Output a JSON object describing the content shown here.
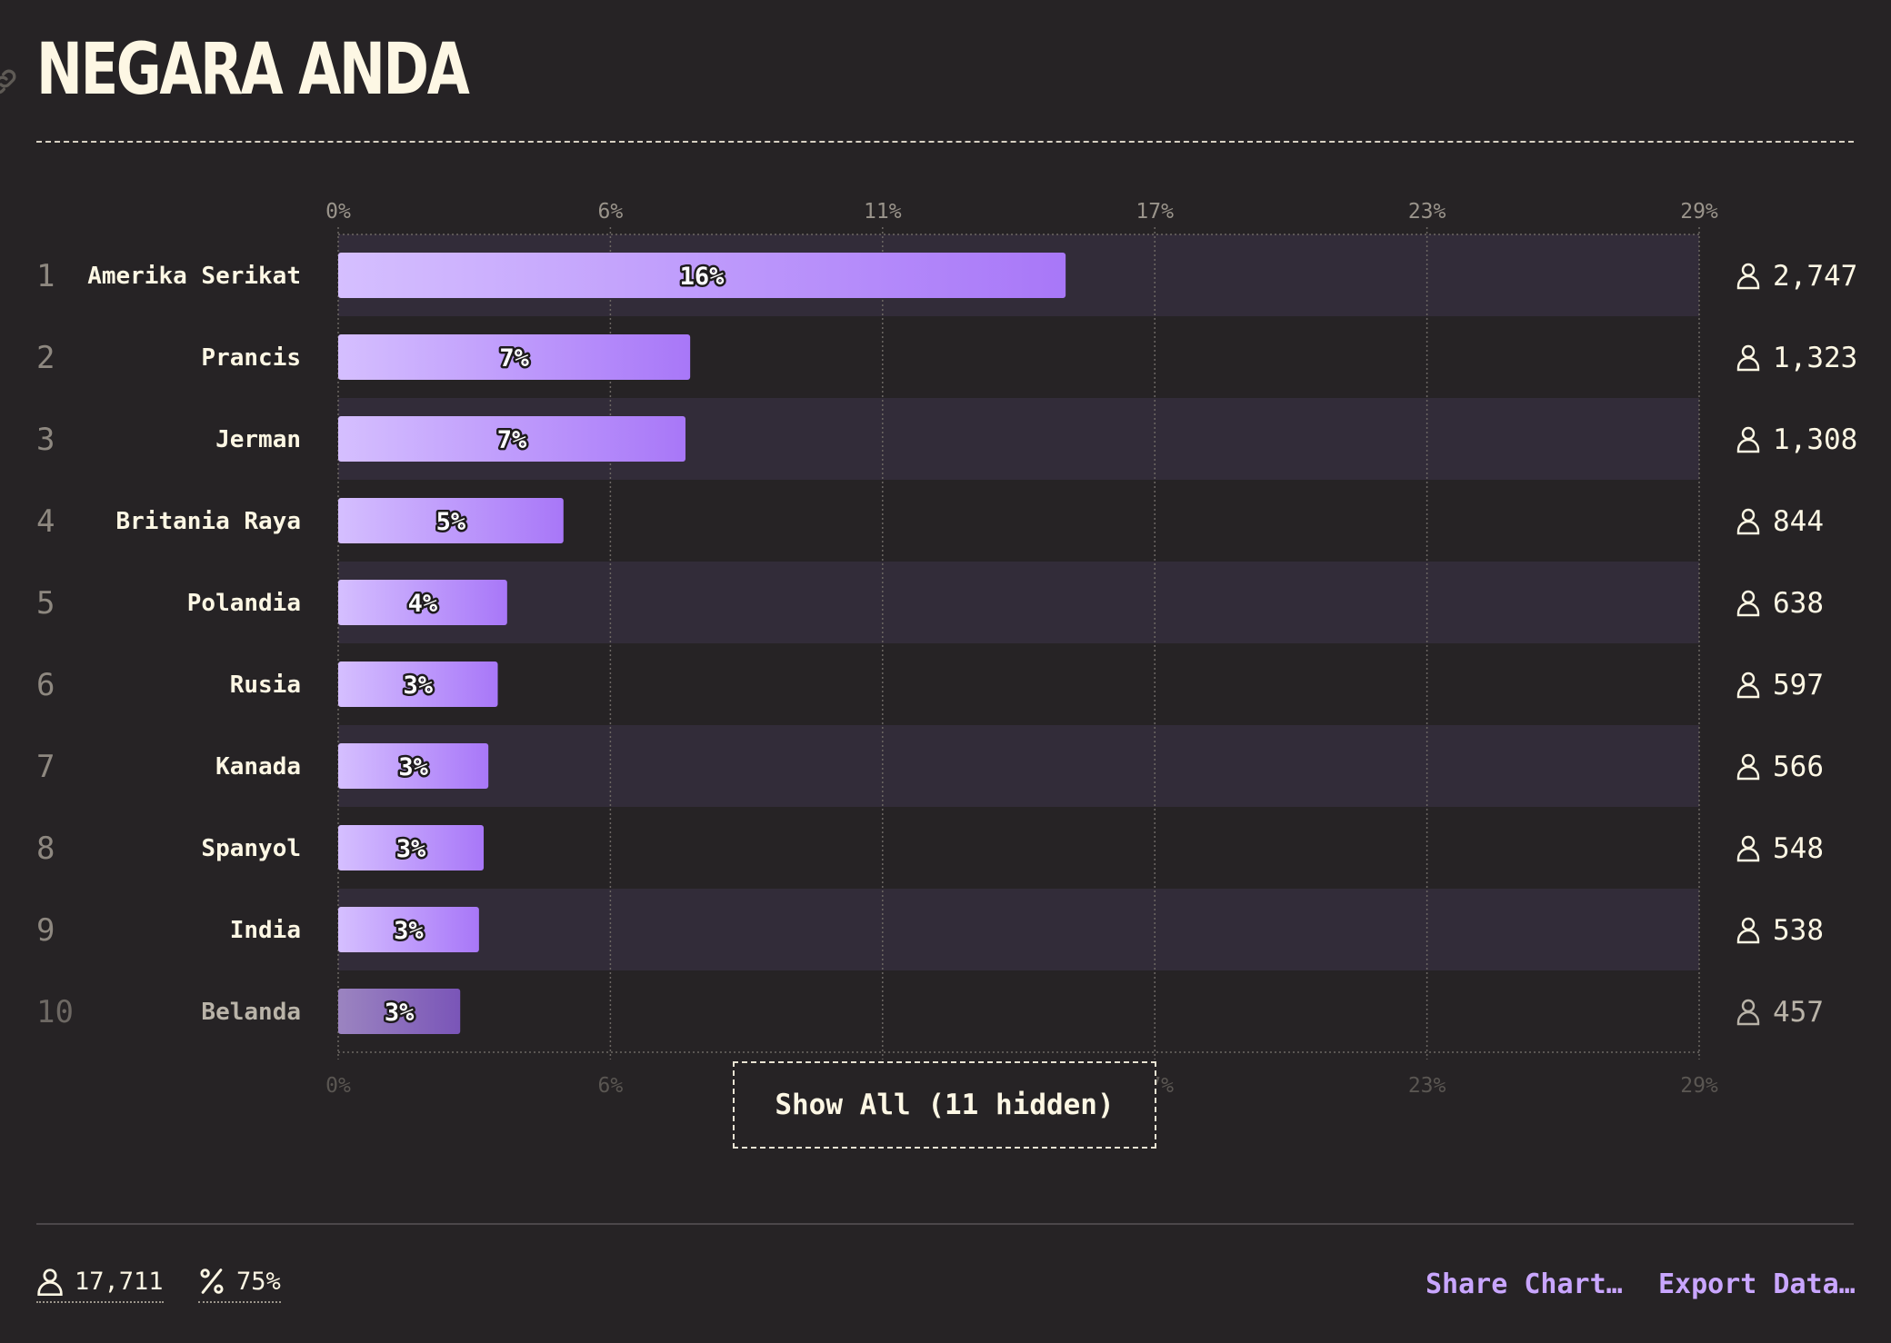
{
  "header": {
    "title": "NEGARA ANDA"
  },
  "chart_data": {
    "type": "bar",
    "orientation": "horizontal",
    "title": "NEGARA ANDA",
    "xlim": [
      0,
      29
    ],
    "x_ticks": [
      "0%",
      "6%",
      "11%",
      "17%",
      "23%",
      "29%"
    ],
    "x_tick_values": [
      0,
      5.8,
      11.6,
      17.4,
      23.2,
      29
    ],
    "grid": true,
    "rows": [
      {
        "rank": "1",
        "label": "Amerika Serikat",
        "value": 15.5,
        "value_label": "16%",
        "count": "2,747"
      },
      {
        "rank": "2",
        "label": "Prancis",
        "value": 7.5,
        "value_label": "7%",
        "count": "1,323"
      },
      {
        "rank": "3",
        "label": "Jerman",
        "value": 7.4,
        "value_label": "7%",
        "count": "1,308"
      },
      {
        "rank": "4",
        "label": "Britania Raya",
        "value": 4.8,
        "value_label": "5%",
        "count": "844"
      },
      {
        "rank": "5",
        "label": "Polandia",
        "value": 3.6,
        "value_label": "4%",
        "count": "638"
      },
      {
        "rank": "6",
        "label": "Rusia",
        "value": 3.4,
        "value_label": "3%",
        "count": "597"
      },
      {
        "rank": "7",
        "label": "Kanada",
        "value": 3.2,
        "value_label": "3%",
        "count": "566"
      },
      {
        "rank": "8",
        "label": "Spanyol",
        "value": 3.1,
        "value_label": "3%",
        "count": "548"
      },
      {
        "rank": "9",
        "label": "India",
        "value": 3.0,
        "value_label": "3%",
        "count": "538"
      },
      {
        "rank": "10",
        "label": "Belanda",
        "value": 2.6,
        "value_label": "3%",
        "count": "457"
      }
    ],
    "colors": {
      "bar_start": "#d5bfff",
      "bar_end": "#a877f8",
      "faded_bar_start": "#9b84c0",
      "faded_bar_end": "#7a55b8",
      "row_band": "#322c39",
      "text": "#fdf7e4",
      "muted": "#8e8880"
    }
  },
  "controls": {
    "show_all_label": "Show All (11 hidden)"
  },
  "footer": {
    "total_people": "17,711",
    "percent_value": "75%",
    "share_label": "Share Chart…",
    "export_label": "Export Data…"
  }
}
